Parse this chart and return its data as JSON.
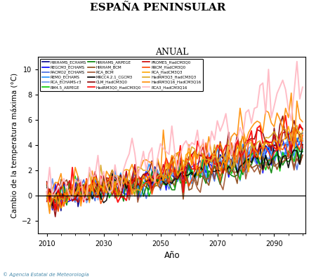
{
  "title": "ESPAÑA PENINSULAR",
  "subtitle": "ANUAL",
  "xlabel": "Año",
  "ylabel": "Cambio de la temperatura máxima (°C)",
  "xlim": [
    2007,
    2101
  ],
  "ylim": [
    -3,
    11
  ],
  "yticks": [
    -2,
    0,
    2,
    4,
    6,
    8,
    10
  ],
  "xticks": [
    2010,
    2030,
    2050,
    2070,
    2090
  ],
  "hline_y": 0,
  "series": [
    {
      "name": "HIRHAMS_ECHAMS",
      "color": "#00008B",
      "lw": 1.2,
      "trend": 4.2,
      "noise": 0.55,
      "seed": 1
    },
    {
      "name": "REGCM3_ECHAMS",
      "color": "#0000FF",
      "lw": 1.2,
      "trend": 4.0,
      "noise": 0.55,
      "seed": 2
    },
    {
      "name": "RACMO2_ECHAMS",
      "color": "#4169E1",
      "lw": 1.2,
      "trend": 3.8,
      "noise": 0.55,
      "seed": 3
    },
    {
      "name": "REMO_ECHAMS",
      "color": "#1E90FF",
      "lw": 1.2,
      "trend": 4.1,
      "noise": 0.55,
      "seed": 4
    },
    {
      "name": "RCA_ECHAMS-r3",
      "color": "#6495ED",
      "lw": 1.2,
      "trend": 3.9,
      "noise": 0.55,
      "seed": 5
    },
    {
      "name": "RM4.5_ARPEGE",
      "color": "#00CC00",
      "lw": 1.2,
      "trend": 3.5,
      "noise": 0.5,
      "seed": 6
    },
    {
      "name": "HIRHAMS_ARPEGE",
      "color": "#008000",
      "lw": 1.2,
      "trend": 3.3,
      "noise": 0.5,
      "seed": 7
    },
    {
      "name": "HIRHAM_BCM",
      "color": "#8B4513",
      "lw": 1.2,
      "trend": 3.0,
      "noise": 0.5,
      "seed": 8
    },
    {
      "name": "RCA_BCM",
      "color": "#A0522D",
      "lw": 1.2,
      "trend": 2.8,
      "noise": 0.5,
      "seed": 9
    },
    {
      "name": "MRCC4.2.1_CGCM3",
      "color": "#000000",
      "lw": 1.2,
      "trend": 3.5,
      "noise": 0.5,
      "seed": 10
    },
    {
      "name": "CLM_HadCM3Q0",
      "color": "#8B0000",
      "lw": 1.2,
      "trend": 5.5,
      "noise": 0.65,
      "seed": 11
    },
    {
      "name": "HadRM3Q0_HadCM3Q0",
      "color": "#FF0000",
      "lw": 1.4,
      "trend": 5.8,
      "noise": 0.7,
      "seed": 12
    },
    {
      "name": "PROMES_HadCM3Q0",
      "color": "#CC0000",
      "lw": 1.2,
      "trend": 5.3,
      "noise": 0.65,
      "seed": 13
    },
    {
      "name": "RRCM_HadCM3Q0",
      "color": "#FF4500",
      "lw": 1.2,
      "trend": 5.0,
      "noise": 0.65,
      "seed": 14
    },
    {
      "name": "RCA_HadCM3Q3",
      "color": "#FFA500",
      "lw": 1.2,
      "trend": 4.8,
      "noise": 0.6,
      "seed": 15
    },
    {
      "name": "HadRM3Q3_HadCM3Q3",
      "color": "#DAA520",
      "lw": 1.2,
      "trend": 5.0,
      "noise": 0.6,
      "seed": 16
    },
    {
      "name": "HadRM3Q16_HadCM3Q16",
      "color": "#FF8C00",
      "lw": 1.2,
      "trend": 6.5,
      "noise": 0.8,
      "seed": 17
    },
    {
      "name": "RCA3_HadCM3Q16",
      "color": "#FFB6C1",
      "lw": 1.4,
      "trend": 8.2,
      "noise": 1.0,
      "seed": 18
    }
  ],
  "start_year": 2010,
  "end_year": 2100,
  "base_noise": 0.45,
  "figsize": [
    4.5,
    3.98
  ],
  "dpi": 100,
  "title_fontsize": 11,
  "subtitle_fontsize": 9,
  "legend_fontsize": 4.0,
  "axis_fontsize": 7.5,
  "tick_fontsize": 7,
  "copyright_text": "© Agencia Estatal de Meteorología",
  "copyright_fontsize": 5,
  "copyright_color": "#4488AA"
}
